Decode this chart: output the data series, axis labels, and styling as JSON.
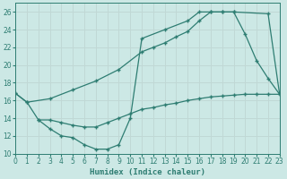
{
  "xlabel": "Humidex (Indice chaleur)",
  "xlim": [
    0,
    23
  ],
  "ylim": [
    10,
    27
  ],
  "yticks": [
    10,
    12,
    14,
    16,
    18,
    20,
    22,
    24,
    26
  ],
  "xticks": [
    0,
    1,
    2,
    3,
    4,
    5,
    6,
    7,
    8,
    9,
    10,
    11,
    12,
    13,
    14,
    15,
    16,
    17,
    18,
    19,
    20,
    21,
    22,
    23
  ],
  "background_color": "#cce8e5",
  "line_color": "#2e7d72",
  "grid_color": "#c0d8d5",
  "curve1_x": [
    0,
    1,
    3,
    5,
    7,
    9,
    11,
    12,
    13,
    14,
    15,
    16,
    17,
    18,
    19,
    22,
    23
  ],
  "curve1_y": [
    16.8,
    15.8,
    16.2,
    17.2,
    18.2,
    19.5,
    21.5,
    22.0,
    22.5,
    23.2,
    23.8,
    25.0,
    26.0,
    26.0,
    26.0,
    25.8,
    16.7
  ],
  "curve2_x": [
    0,
    1,
    2,
    3,
    4,
    5,
    6,
    7,
    8,
    9,
    10,
    11,
    12,
    13,
    14,
    15,
    16,
    17,
    18,
    19,
    20,
    21,
    22,
    23
  ],
  "curve2_y": [
    16.8,
    15.8,
    13.8,
    13.8,
    13.5,
    13.2,
    13.0,
    13.0,
    13.5,
    14.0,
    14.5,
    15.0,
    15.2,
    15.5,
    15.7,
    16.0,
    16.2,
    16.4,
    16.5,
    16.6,
    16.7,
    16.7,
    16.7,
    16.7
  ],
  "curve3_x": [
    2,
    3,
    4,
    5,
    6,
    7,
    8,
    9,
    10,
    11,
    13,
    15,
    16,
    17,
    18,
    19,
    20,
    21,
    22,
    23
  ],
  "curve3_y": [
    13.8,
    12.8,
    12.0,
    11.8,
    11.0,
    10.5,
    10.5,
    11.0,
    14.0,
    23.0,
    24.0,
    25.0,
    26.0,
    26.0,
    26.0,
    26.0,
    23.5,
    20.5,
    18.5,
    16.7
  ]
}
